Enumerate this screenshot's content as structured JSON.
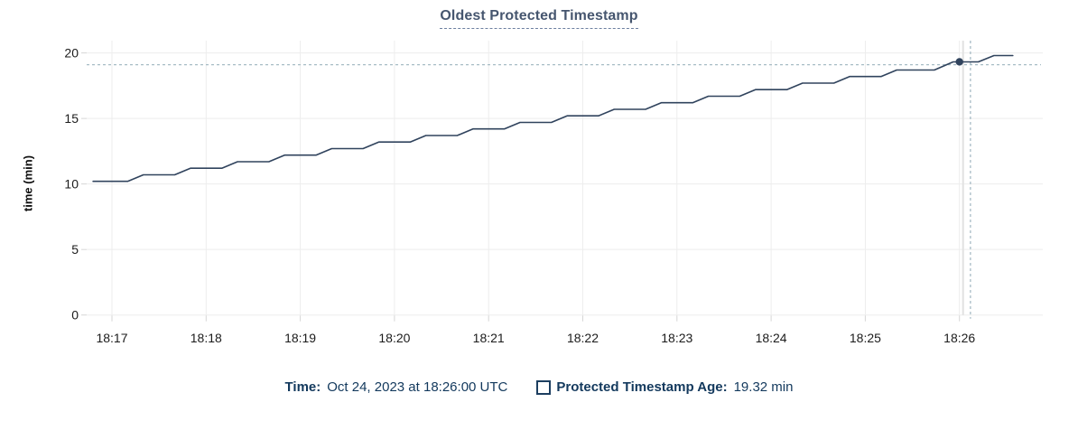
{
  "chart": {
    "title": "Oldest Protected Timestamp",
    "ylabel": "time (min)"
  },
  "tooltip": {
    "time_label": "Time:",
    "time_value": "Oct 24, 2023 at 18:26:00 UTC",
    "series_label": "Protected Timestamp Age:",
    "series_value": "19.32 min"
  },
  "colors": {
    "line": "#30435d",
    "crosshair": "#a7bcc5",
    "grid": "#ededed",
    "grid_stub": "#d6d6d6",
    "hover_column": "#e2e2e2",
    "tick_text": "#1b1b1b",
    "title_text": "#46566f",
    "legend_text": "#13395d"
  },
  "chart_data": {
    "type": "line",
    "title": "Oldest Protected Timestamp",
    "xlabel": "",
    "ylabel": "time (min)",
    "ylim": [
      0,
      20
    ],
    "y_ticks": [
      0,
      5,
      10,
      15,
      20
    ],
    "x_ticks": [
      "18:17",
      "18:18",
      "18:19",
      "18:20",
      "18:21",
      "18:22",
      "18:23",
      "18:24",
      "18:25",
      "18:26"
    ],
    "x_tick_seconds": [
      0,
      60,
      120,
      180,
      240,
      300,
      360,
      420,
      480,
      540
    ],
    "x_domain_seconds": [
      -16,
      593
    ],
    "grid": true,
    "legend_position": "bottom",
    "series": [
      {
        "name": "Protected Timestamp Age",
        "unit": "min",
        "points": [
          [
            -12,
            10.2
          ],
          [
            10,
            10.2
          ],
          [
            20,
            10.7
          ],
          [
            40,
            10.7
          ],
          [
            50,
            11.2
          ],
          [
            70,
            11.2
          ],
          [
            80,
            11.7
          ],
          [
            100,
            11.7
          ],
          [
            110,
            12.2
          ],
          [
            130,
            12.2
          ],
          [
            140,
            12.7
          ],
          [
            160,
            12.7
          ],
          [
            170,
            13.2
          ],
          [
            190,
            13.2
          ],
          [
            200,
            13.7
          ],
          [
            220,
            13.7
          ],
          [
            230,
            14.2
          ],
          [
            250,
            14.2
          ],
          [
            260,
            14.7
          ],
          [
            280,
            14.7
          ],
          [
            290,
            15.2
          ],
          [
            310,
            15.2
          ],
          [
            320,
            15.7
          ],
          [
            340,
            15.7
          ],
          [
            350,
            16.2
          ],
          [
            370,
            16.2
          ],
          [
            380,
            16.7
          ],
          [
            400,
            16.7
          ],
          [
            410,
            17.2
          ],
          [
            430,
            17.2
          ],
          [
            440,
            17.7
          ],
          [
            460,
            17.7
          ],
          [
            470,
            18.2
          ],
          [
            490,
            18.2
          ],
          [
            500,
            18.7
          ],
          [
            524,
            18.7
          ],
          [
            536,
            19.32
          ],
          [
            552,
            19.32
          ],
          [
            562,
            19.8
          ],
          [
            574,
            19.8
          ]
        ]
      }
    ],
    "hover_point": {
      "time": "18:26:00",
      "time_full": "Oct 24, 2023 at 18:26:00 UTC",
      "seconds": 540,
      "value": 19.32
    },
    "crosshair": {
      "x_seconds": 547,
      "y_value": 19.1
    }
  }
}
